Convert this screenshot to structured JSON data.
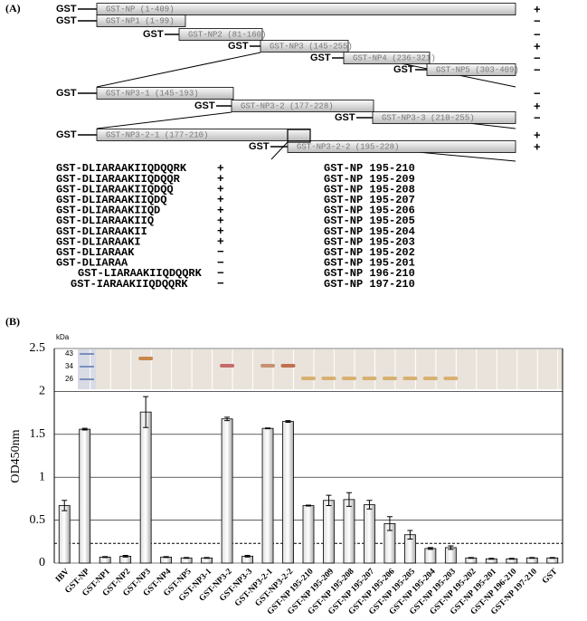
{
  "panel_a": {
    "label": "(A)",
    "constructs": [
      {
        "gst": "GST",
        "label": "GST-NP (1-409)",
        "result": "+"
      },
      {
        "gst": "GST",
        "label": "GST-NP1 (1-99)",
        "result": "−"
      },
      {
        "gst": "GST",
        "label": "GST-NP2 (81-160)",
        "result": "−"
      },
      {
        "gst": "GST",
        "label": "GST-NP3 (145-255)",
        "result": "+"
      },
      {
        "gst": "GST",
        "label": "GST-NP4 (236-321)",
        "result": "−"
      },
      {
        "gst": "GST",
        "label": "GST-NP5 (303-409)",
        "result": "−"
      },
      {
        "gst": "GST",
        "label": "GST-NP3-1 (145-193)",
        "result": "−"
      },
      {
        "gst": "GST",
        "label": "GST-NP3-2 (177-228)",
        "result": "+"
      },
      {
        "gst": "GST",
        "label": "GST-NP3-3 (210-255)",
        "result": "−"
      },
      {
        "gst": "GST",
        "label": "GST-NP3-2-1 (177-210)",
        "result": "+"
      },
      {
        "gst": "GST",
        "label": "GST-NP3-2-2 (195-228)",
        "result": "+"
      }
    ],
    "peptides": [
      {
        "sequence": "GST-DLIARAAKIIQDQQRK",
        "result": "+",
        "name": "GST-NP 195-210"
      },
      {
        "sequence": "GST-DLIARAAKIIQDQQR",
        "result": "+",
        "name": "GST-NP 195-209"
      },
      {
        "sequence": "GST-DLIARAAKIIQDQQ",
        "result": "+",
        "name": "GST-NP 195-208"
      },
      {
        "sequence": "GST-DLIARAAKIIQDQ",
        "result": "+",
        "name": "GST-NP 195-207"
      },
      {
        "sequence": "GST-DLIARAAKIIQD",
        "result": "+",
        "name": "GST-NP 195-206"
      },
      {
        "sequence": "GST-DLIARAAKIIQ",
        "result": "+",
        "name": "GST-NP 195-205"
      },
      {
        "sequence": "GST-DLIARAAKII",
        "result": "+",
        "name": "GST-NP 195-204"
      },
      {
        "sequence": "GST-DLIARAAKI",
        "result": "+",
        "name": "GST-NP 195-203"
      },
      {
        "sequence": "GST-DLIARAAK",
        "result": "−",
        "name": "GST-NP 195-202"
      },
      {
        "sequence": "GST-DLIARAA",
        "result": "−",
        "name": "GST-NP 195-201"
      },
      {
        "sequence": "GST-LIARAAKIIQDQQRK",
        "result": "−",
        "name": "GST-NP 196-210"
      },
      {
        "sequence": "GST-IARAAKIIQDQQRK",
        "result": "−",
        "name": "GST-NP 197-210"
      }
    ]
  },
  "chart_data": {
    "type": "bar",
    "panel_label": "(B)",
    "ylabel": "OD450nm",
    "gel_unit": "kDa",
    "gel_markers": [
      "43",
      "34",
      "26"
    ],
    "categories": [
      "IBV",
      "GST-NP",
      "GST-NP1",
      "GST-NP2",
      "GST-NP3",
      "GST-NP4",
      "GST-NP5",
      "GST-NP3-1",
      "GST-NP3-2",
      "GST-NP3-3",
      "GST-NP3-2-1",
      "GST-NP3-2-2",
      "GST-NP 195-210",
      "GST-NP 195-209",
      "GST-NP 195-208",
      "GST-NP 195-207",
      "GST-NP 195-206",
      "GST-NP 195-205",
      "GST-NP 195-204",
      "GST-NP 195-203",
      "GST-NP 195-202",
      "GST-NP 195-201",
      "GST-NP 196-210",
      "GST-NP 197-210",
      "GST"
    ],
    "series": [
      {
        "values": [
          0.67,
          1.56,
          0.07,
          0.08,
          1.76,
          0.07,
          0.06,
          0.06,
          1.68,
          0.08,
          1.57,
          1.65,
          0.67,
          0.73,
          0.74,
          0.68,
          0.46,
          0.33,
          0.17,
          0.18,
          0.06,
          0.05,
          0.05,
          0.06,
          0.06
        ],
        "errors": [
          0.06,
          0.01,
          0.005,
          0.01,
          0.18,
          0.005,
          0.005,
          0.005,
          0.02,
          0.01,
          0.005,
          0.01,
          0.005,
          0.06,
          0.08,
          0.05,
          0.08,
          0.05,
          0.01,
          0.02,
          0.005,
          0.005,
          0.005,
          0.005,
          0.005
        ]
      }
    ],
    "threshold": 0.23,
    "ylim": [
      0,
      2.5
    ],
    "yticks": [
      0,
      0.5,
      1,
      1.5,
      2,
      2.5
    ],
    "grid": true
  }
}
